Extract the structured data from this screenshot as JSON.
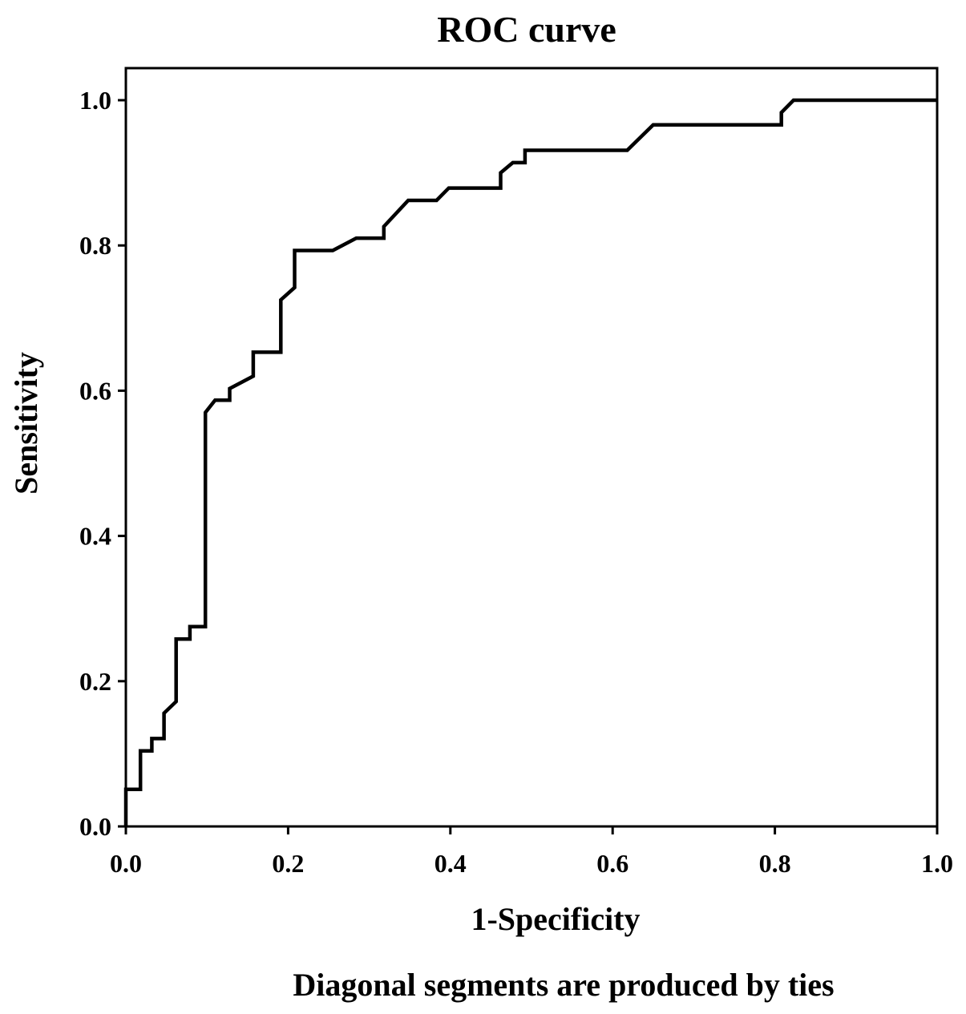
{
  "chart_data": {
    "type": "line",
    "title": "ROC curve",
    "xlabel": "1-Specificity",
    "ylabel": "Sensitivity",
    "footnote": "Diagonal segments are produced by ties",
    "xlim": [
      0,
      1
    ],
    "ylim": [
      0,
      1
    ],
    "xticks": [
      "0.0",
      "0.2",
      "0.4",
      "0.6",
      "0.8",
      "1.0"
    ],
    "yticks": [
      "0.0",
      "0.2",
      "0.4",
      "0.6",
      "0.8",
      "1.0"
    ],
    "grid": false,
    "line_color": "#000000",
    "series": [
      {
        "name": "ROC",
        "x": [
          0,
          0,
          0.018,
          0.018,
          0.032,
          0.032,
          0.047,
          0.047,
          0.062,
          0.062,
          0.079,
          0.079,
          0.098,
          0.098,
          0.11,
          0.128,
          0.128,
          0.157,
          0.157,
          0.191,
          0.191,
          0.208,
          0.208,
          0.255,
          0.284,
          0.318,
          0.318,
          0.348,
          0.383,
          0.398,
          0.462,
          0.462,
          0.477,
          0.492,
          0.492,
          0.618,
          0.65,
          0.808,
          0.808,
          0.823,
          1.0
        ],
        "y": [
          0,
          0.051,
          0.051,
          0.104,
          0.104,
          0.121,
          0.121,
          0.156,
          0.172,
          0.258,
          0.258,
          0.275,
          0.275,
          0.57,
          0.587,
          0.587,
          0.603,
          0.62,
          0.653,
          0.653,
          0.725,
          0.742,
          0.793,
          0.793,
          0.81,
          0.81,
          0.826,
          0.862,
          0.862,
          0.879,
          0.879,
          0.9,
          0.914,
          0.914,
          0.931,
          0.931,
          0.966,
          0.966,
          0.983,
          1.0,
          1.0
        ]
      }
    ]
  }
}
